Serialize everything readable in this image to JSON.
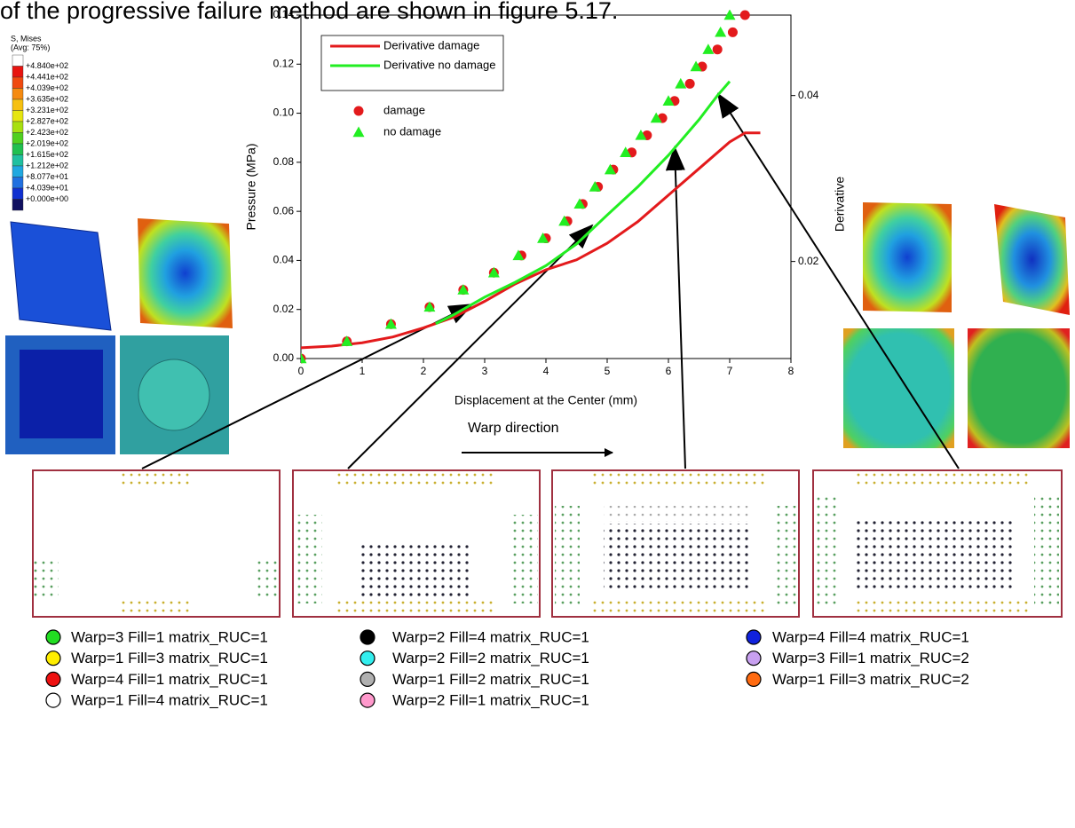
{
  "caption_fragment": "of the progressive failure method are shown in figure 5.17.",
  "annotation": "Warp direction",
  "contour_legend": {
    "title": "S, Mises",
    "subtitle": "(Avg: 75%)",
    "labels": [
      "+4.840e+02",
      "+4.441e+02",
      "+4.039e+02",
      "+3.635e+02",
      "+3.231e+02",
      "+2.827e+02",
      "+2.423e+02",
      "+2.019e+02",
      "+1.615e+02",
      "+1.212e+02",
      "+8.077e+01",
      "+4.039e+01",
      "+0.000e+00"
    ]
  },
  "fe_legend": [
    {
      "label": "Warp=3 Fill=1 matrix_RUC=1",
      "color": "#22dd22"
    },
    {
      "label": "Warp=1 Fill=3 matrix_RUC=1",
      "color": "#ffee00"
    },
    {
      "label": "Warp=4 Fill=1 matrix_RUC=1",
      "color": "#ee1111"
    },
    {
      "label": "Warp=1 Fill=4 matrix_RUC=1",
      "color": "#ffffff"
    },
    {
      "label": "Warp=2 Fill=4 matrix_RUC=1",
      "color": "#000000"
    },
    {
      "label": "Warp=2 Fill=2 matrix_RUC=1",
      "color": "#33eeee"
    },
    {
      "label": "Warp=1 Fill=2 matrix_RUC=1",
      "color": "#b0b0b0"
    },
    {
      "label": "Warp=2 Fill=1 matrix_RUC=1",
      "color": "#ff99cc"
    },
    {
      "label": "Warp=4 Fill=4 matrix_RUC=1",
      "color": "#1122dd"
    },
    {
      "label": "Warp=3 Fill=1 matrix_RUC=2",
      "color": "#c8a0f0"
    },
    {
      "label": "Warp=1 Fill=3 matrix_RUC=2",
      "color": "#ff6a10"
    }
  ],
  "chart_data": {
    "type": "line",
    "xlabel": "Displacement at the Center (mm)",
    "ylabel": "Pressure (MPa)",
    "y2label": "Derivative",
    "xlim": [
      0,
      8
    ],
    "xticks": [
      0,
      1,
      2,
      3,
      4,
      5,
      6,
      7,
      8
    ],
    "ylim": [
      0,
      0.14
    ],
    "yticks": [
      {
        "value": 0,
        "label": "0.00"
      },
      0.02,
      0.04,
      0.06,
      0.08,
      {
        "value": 0.1,
        "label": "0.10"
      },
      0.12,
      0.14
    ],
    "y2lim": [
      0.0083,
      0.0497
    ],
    "y2ticks": [
      0.02,
      0.04
    ],
    "series": [
      {
        "name": "Derivative damage",
        "color": "#e31a1c",
        "marker": "line",
        "axis": "y2",
        "x": [
          0,
          0.5,
          1,
          1.5,
          2,
          2.5,
          3,
          3.5,
          4,
          4.5,
          5,
          5.5,
          6,
          6.5,
          7,
          7.25,
          7.5
        ],
        "values": [
          0.0096,
          0.0098,
          0.0102,
          0.0109,
          0.012,
          0.0133,
          0.0152,
          0.0173,
          0.019,
          0.0202,
          0.0222,
          0.0248,
          0.028,
          0.0312,
          0.0344,
          0.0355,
          0.0355
        ]
      },
      {
        "name": "Derivative no damage",
        "color": "#22ee22",
        "marker": "line",
        "axis": "y2",
        "x": [
          2.2,
          2.5,
          3,
          3.5,
          4,
          4.5,
          5,
          5.5,
          6,
          6.5,
          6.8,
          7
        ],
        "values": [
          0.0125,
          0.0136,
          0.0157,
          0.0175,
          0.0195,
          0.0221,
          0.0256,
          0.029,
          0.0328,
          0.0371,
          0.04,
          0.0417
        ]
      },
      {
        "name": "damage",
        "color": "#e31a1c",
        "marker": "circle",
        "x": [
          0,
          0.75,
          1.47,
          2.1,
          2.65,
          3.15,
          3.6,
          4.0,
          4.35,
          4.6,
          4.85,
          5.1,
          5.4,
          5.65,
          5.9,
          6.1,
          6.35,
          6.55,
          6.8,
          7.05,
          7.25
        ],
        "values": [
          0,
          0.007,
          0.014,
          0.021,
          0.028,
          0.035,
          0.042,
          0.049,
          0.056,
          0.063,
          0.07,
          0.077,
          0.084,
          0.091,
          0.098,
          0.105,
          0.112,
          0.119,
          0.126,
          0.133,
          0.14
        ]
      },
      {
        "name": "no damage",
        "color": "#22ee22",
        "marker": "triangle",
        "x": [
          0,
          0.75,
          1.47,
          2.1,
          2.65,
          3.15,
          3.55,
          3.95,
          4.3,
          4.55,
          4.8,
          5.05,
          5.3,
          5.55,
          5.8,
          6.0,
          6.2,
          6.45,
          6.65,
          6.85,
          7.0
        ],
        "values": [
          0,
          0.007,
          0.014,
          0.021,
          0.028,
          0.035,
          0.042,
          0.049,
          0.056,
          0.063,
          0.07,
          0.077,
          0.084,
          0.091,
          0.098,
          0.105,
          0.112,
          0.119,
          0.126,
          0.133,
          0.14
        ]
      }
    ]
  }
}
